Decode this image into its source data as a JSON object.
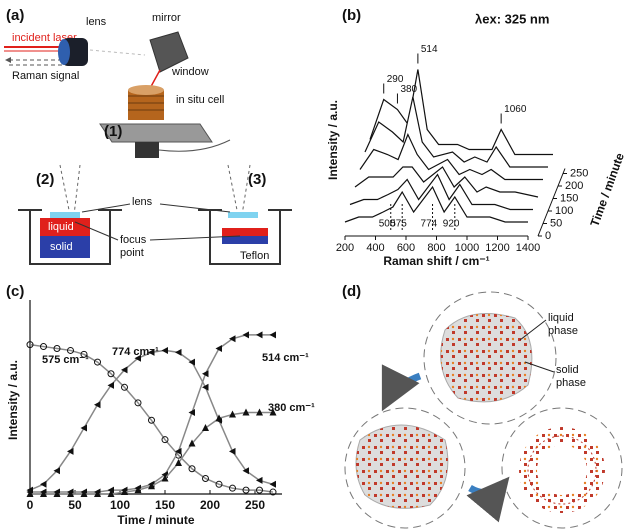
{
  "panel_a": {
    "label": "(a)",
    "incident_laser": "incident laser",
    "lens": "lens",
    "mirror": "mirror",
    "raman_signal": "Raman signal",
    "window": "window",
    "cell": "in situ cell",
    "step1": "(1)",
    "step2": "(2)",
    "step3": "(3)",
    "lens2": "lens",
    "liquid": "liquid",
    "solid": "solid",
    "focus": "focus",
    "point": "point",
    "teflon": "Teflon"
  },
  "chart_data": [
    {
      "type": "waterfall",
      "label": "(b)",
      "title": "λex: 325 nm",
      "xlabel": "Raman shift / cm⁻¹",
      "ylabel": "Intensity / a.u.",
      "zlabel": "Time / minute",
      "x": [
        200,
        290,
        380,
        450,
        514,
        575,
        650,
        774,
        850,
        920,
        1000,
        1060,
        1150,
        1250,
        1400
      ],
      "xlim": [
        200,
        1400
      ],
      "xticks": [
        200,
        400,
        600,
        800,
        1000,
        1200,
        1400
      ],
      "zlim": [
        0,
        270
      ],
      "zticks": [
        0,
        50,
        100,
        150,
        200,
        250
      ],
      "series": [
        {
          "z": 250,
          "values": [
            6,
            14,
            12,
            9,
            20,
            8,
            5,
            5,
            4,
            4,
            4,
            8,
            3,
            3,
            3
          ]
        },
        {
          "z": 200,
          "values": [
            6,
            12,
            10,
            8,
            17,
            8,
            5,
            6,
            4,
            5,
            4,
            7,
            3,
            3,
            3
          ]
        },
        {
          "z": 150,
          "values": [
            5,
            9,
            8,
            7,
            12,
            8,
            5,
            7,
            4,
            5,
            4,
            5,
            3,
            3,
            3
          ]
        },
        {
          "z": 100,
          "values": [
            4,
            6,
            6,
            6,
            8,
            8,
            5,
            8,
            4,
            6,
            3,
            4,
            3,
            3,
            2
          ]
        },
        {
          "z": 50,
          "values": [
            3,
            4,
            4,
            5,
            6,
            8,
            4,
            9,
            4,
            7,
            3,
            3,
            3,
            2,
            2
          ]
        },
        {
          "z": 0,
          "values": [
            2,
            3,
            3,
            4,
            5,
            8,
            4,
            9,
            4,
            7,
            3,
            3,
            3,
            2,
            2
          ]
        }
      ],
      "peaks_top": [
        290,
        380,
        514,
        1060
      ],
      "peaks_bottom": [
        500,
        575,
        774,
        920
      ]
    },
    {
      "type": "scatter-line",
      "label": "(c)",
      "xlabel": "Time / minute",
      "ylabel": "Intensity / a.u.",
      "x": [
        0,
        15,
        30,
        45,
        60,
        75,
        90,
        105,
        120,
        135,
        150,
        165,
        180,
        195,
        210,
        225,
        240,
        255,
        270
      ],
      "xlim": [
        0,
        280
      ],
      "xticks": [
        0,
        50,
        100,
        150,
        200,
        250
      ],
      "ylim": [
        0,
        1
      ],
      "line_color": "#888888",
      "marker_color": "#111111",
      "series": [
        {
          "name": "575 cm⁻¹",
          "marker": "circle-open",
          "values": [
            0.77,
            0.76,
            0.75,
            0.74,
            0.72,
            0.68,
            0.62,
            0.55,
            0.47,
            0.38,
            0.28,
            0.2,
            0.13,
            0.08,
            0.05,
            0.03,
            0.02,
            0.02,
            0.01
          ]
        },
        {
          "name": "774 cm⁻¹",
          "marker": "triangle-left",
          "values": [
            0.02,
            0.05,
            0.12,
            0.22,
            0.34,
            0.46,
            0.56,
            0.64,
            0.7,
            0.73,
            0.74,
            0.73,
            0.68,
            0.55,
            0.38,
            0.22,
            0.12,
            0.07,
            0.05
          ]
        },
        {
          "name": "514 cm⁻¹",
          "marker": "triangle-left",
          "values": [
            0.01,
            0.01,
            0.01,
            0.01,
            0.01,
            0.01,
            0.02,
            0.02,
            0.03,
            0.05,
            0.1,
            0.22,
            0.42,
            0.62,
            0.75,
            0.8,
            0.82,
            0.82,
            0.82
          ]
        },
        {
          "name": "380 cm⁻¹",
          "marker": "triangle-up",
          "values": [
            0,
            0,
            0,
            0,
            0,
            0,
            0,
            0.01,
            0.02,
            0.04,
            0.08,
            0.16,
            0.26,
            0.34,
            0.39,
            0.41,
            0.42,
            0.42,
            0.42
          ]
        }
      ]
    }
  ],
  "panel_d": {
    "label": "(d)",
    "liquid": "liquid",
    "liquid_phase": "phase",
    "solid": "solid",
    "solid_phase": "phase"
  }
}
